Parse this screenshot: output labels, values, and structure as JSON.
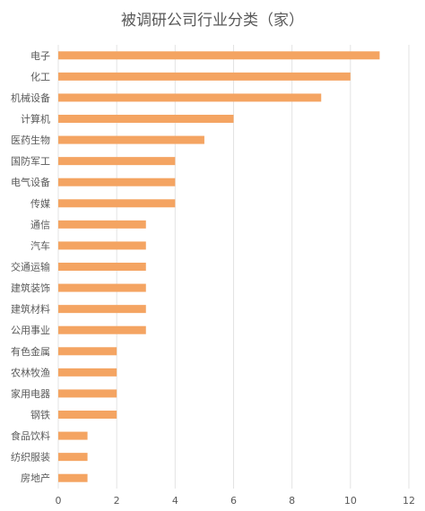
{
  "chart_data": {
    "type": "bar",
    "orientation": "horizontal",
    "title": "被调研公司行业分类（家）",
    "categories": [
      "电子",
      "化工",
      "机械设备",
      "计算机",
      "医药生物",
      "国防军工",
      "电气设备",
      "传媒",
      "通信",
      "汽车",
      "交通运输",
      "建筑装饰",
      "建筑材料",
      "公用事业",
      "有色金属",
      "农林牧渔",
      "家用电器",
      "钢铁",
      "食品饮料",
      "纺织服装",
      "房地产"
    ],
    "values": [
      11,
      10,
      9,
      6,
      5,
      4,
      4,
      4,
      3,
      3,
      3,
      3,
      3,
      3,
      2,
      2,
      2,
      2,
      1,
      1,
      1
    ],
    "xlabel": "",
    "ylabel": "",
    "xlim": [
      0,
      12
    ],
    "xticks": [
      0,
      2,
      4,
      6,
      8,
      10,
      12
    ],
    "grid": true,
    "legend": "none",
    "bar_color": "#F4A462",
    "grid_color": "#E3E3E3",
    "text_color": "#595959"
  }
}
